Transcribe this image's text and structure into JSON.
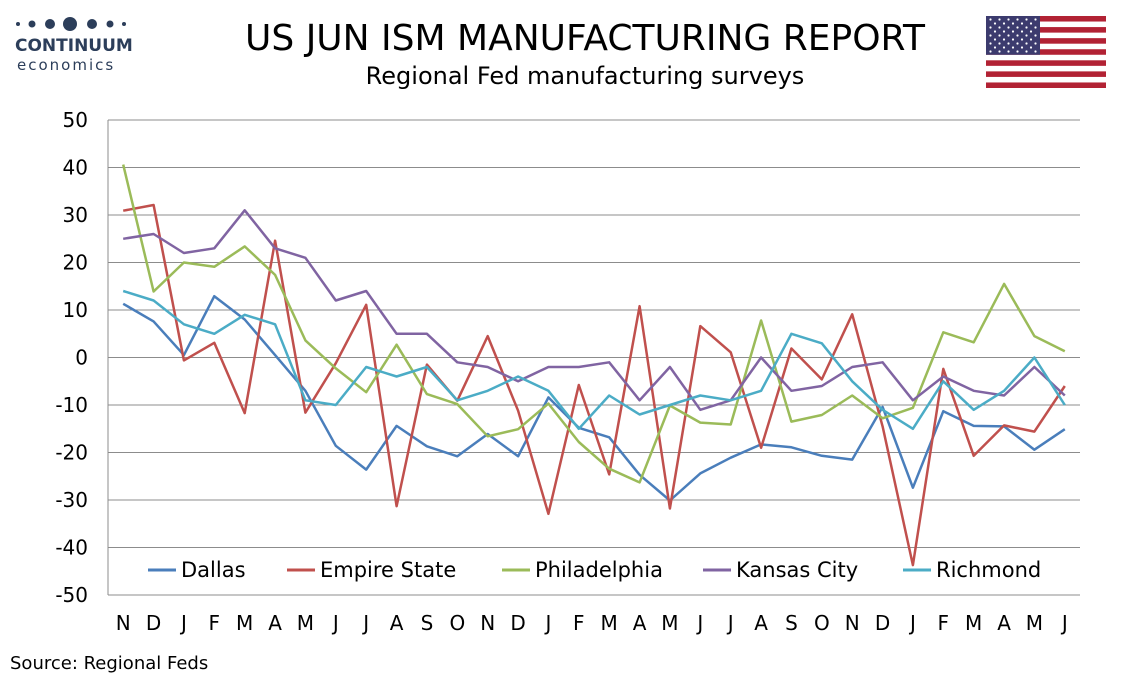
{
  "header": {
    "title": "US JUN ISM MANUFACTURING REPORT",
    "subtitle": "Regional Fed manufacturing surveys"
  },
  "logo": {
    "name": "CONTINUUM",
    "sub": "economics",
    "color": "#2c3e5a"
  },
  "flag": {
    "icon": "us-flag-icon"
  },
  "footer": {
    "source": "Source: Regional Feds"
  },
  "chart_data": {
    "type": "line",
    "title": "US JUN ISM MANUFACTURING REPORT",
    "subtitle": "Regional Fed manufacturing surveys",
    "xlabel": "",
    "ylabel": "",
    "ylim": [
      -50,
      50
    ],
    "yticks": [
      50,
      40,
      30,
      20,
      10,
      0,
      -10,
      -20,
      -30,
      -40,
      -50
    ],
    "grid": true,
    "legend_position": "bottom-inside",
    "categories": [
      "N",
      "D",
      "J",
      "F",
      "M",
      "A",
      "M",
      "J",
      "J",
      "A",
      "S",
      "O",
      "N",
      "D",
      "J",
      "F",
      "M",
      "A",
      "M",
      "J",
      "J",
      "A",
      "S",
      "O",
      "N",
      "D",
      "J",
      "F",
      "M",
      "A",
      "M",
      "J"
    ],
    "series": [
      {
        "name": "Dallas",
        "color": "#4a7ebb",
        "values": [
          11.3,
          7.6,
          0.5,
          12.9,
          8.0,
          0.5,
          -7.0,
          -18.6,
          -23.6,
          -14.4,
          -18.7,
          -20.8,
          -16.1,
          -20.8,
          -8.4,
          -14.8,
          -16.8,
          -24.7,
          -30.1,
          -24.4,
          -21.1,
          -18.3,
          -18.9,
          -20.7,
          -21.5,
          -10.4,
          -27.4,
          -11.3,
          -14.4,
          -14.5,
          -19.4,
          -15.1
        ]
      },
      {
        "name": "Empire State",
        "color": "#c0504d",
        "values": [
          30.9,
          32.1,
          -0.6,
          3.1,
          -11.7,
          24.6,
          -11.6,
          -1.2,
          11.1,
          -31.3,
          -1.5,
          -9.1,
          4.5,
          -11.2,
          -32.9,
          -5.8,
          -24.6,
          10.8,
          -31.8,
          6.6,
          1.1,
          -19.0,
          1.9,
          -4.6,
          9.1,
          -14.5,
          -43.7,
          -2.4,
          -20.7,
          -14.3,
          -15.6,
          -6.0
        ]
      },
      {
        "name": "Philadelphia",
        "color": "#9bbb59",
        "values": [
          40.6,
          13.9,
          20.0,
          19.1,
          23.4,
          17.4,
          3.6,
          -2.3,
          -7.3,
          2.7,
          -7.7,
          -9.8,
          -16.6,
          -15.1,
          -9.7,
          -17.8,
          -23.4,
          -26.3,
          -10.1,
          -13.7,
          -14.1,
          7.8,
          -13.5,
          -12.1,
          -8.0,
          -12.8,
          -10.6,
          5.3,
          3.2,
          15.5,
          4.5,
          1.3
        ]
      },
      {
        "name": "Kansas City",
        "color": "#8064a2",
        "values": [
          25.0,
          26.0,
          22.0,
          23.0,
          31.0,
          23.0,
          21.0,
          12.0,
          14.0,
          5.0,
          5.0,
          -1.0,
          -2.0,
          -5.0,
          -2.0,
          -2.0,
          -1.0,
          -9.0,
          -2.0,
          -11.0,
          -9.0,
          0.0,
          -7.0,
          -6.0,
          -2.0,
          -1.0,
          -9.0,
          -4.0,
          -7.0,
          -8.0,
          -2.0,
          -8.0
        ]
      },
      {
        "name": "Richmond",
        "color": "#4bacc6",
        "values": [
          14.0,
          12.0,
          7.0,
          5.0,
          9.0,
          7.0,
          -9.0,
          -10.0,
          -2.0,
          -4.0,
          -2.0,
          -9.0,
          -7.0,
          -4.0,
          -7.0,
          -15.0,
          -8.0,
          -12.0,
          -10.0,
          -8.0,
          -9.0,
          -7.0,
          5.0,
          3.0,
          -5.0,
          -11.0,
          -15.0,
          -5.0,
          -11.0,
          -7.0,
          0.0,
          -10.0
        ]
      }
    ]
  }
}
